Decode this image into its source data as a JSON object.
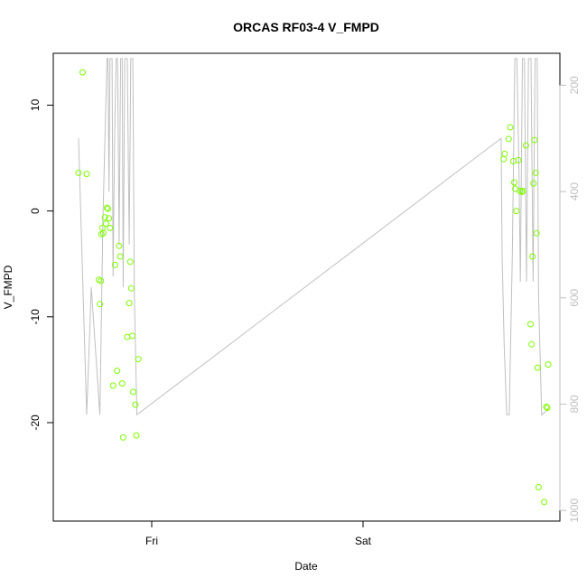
{
  "chart_data": {
    "type": "scatter",
    "title": "ORCAS RF03-4 V_FMPD",
    "xlabel": "Date",
    "ylabel": "V_FMPD",
    "x_tick_labels": [
      "Fri",
      "Sat"
    ],
    "y_ticks": [
      -20,
      -10,
      0,
      10
    ],
    "y_tick_labels": [
      "-20",
      "-10",
      "0",
      "10"
    ],
    "ylim": [
      -29.3,
      14.9
    ],
    "right_axis": {
      "ticks": [
        200,
        400,
        600,
        800,
        1000
      ],
      "labels": [
        "200",
        "400",
        "600",
        "800",
        "1000"
      ],
      "lim": [
        1020,
        140
      ],
      "color": "#bfbfbf"
    },
    "colors": {
      "points": "#7cfc00",
      "line": "#c0c0c0",
      "axis": "#000000"
    },
    "series": [
      {
        "type": "scatter",
        "values": [
          [
            0.05,
            3.6
          ],
          [
            0.058,
            13.1
          ],
          [
            0.066,
            3.5
          ],
          [
            0.09,
            -6.5
          ],
          [
            0.092,
            -8.8
          ],
          [
            0.094,
            -6.6
          ],
          [
            0.095,
            -2.2
          ],
          [
            0.097,
            -1.6
          ],
          [
            0.099,
            -2.1
          ],
          [
            0.102,
            -0.6
          ],
          [
            0.104,
            -1.2
          ],
          [
            0.106,
            0.3
          ],
          [
            0.108,
            0.2
          ],
          [
            0.11,
            -0.7
          ],
          [
            0.112,
            -1.6
          ],
          [
            0.118,
            -16.5
          ],
          [
            0.122,
            -5.1
          ],
          [
            0.126,
            -15.1
          ],
          [
            0.13,
            -3.3
          ],
          [
            0.132,
            -4.3
          ],
          [
            0.136,
            -16.3
          ],
          [
            0.138,
            -21.4
          ],
          [
            0.146,
            -11.9
          ],
          [
            0.15,
            -8.7
          ],
          [
            0.152,
            -4.8
          ],
          [
            0.154,
            -7.3
          ],
          [
            0.156,
            -11.8
          ],
          [
            0.158,
            -17.1
          ],
          [
            0.162,
            -18.3
          ],
          [
            0.164,
            -21.2
          ],
          [
            0.168,
            -14.0
          ],
          [
            0.889,
            4.9
          ],
          [
            0.891,
            5.4
          ],
          [
            0.899,
            6.8
          ],
          [
            0.902,
            7.9
          ],
          [
            0.908,
            4.7
          ],
          [
            0.91,
            2.7
          ],
          [
            0.912,
            2.1
          ],
          [
            0.914,
            0.0
          ],
          [
            0.918,
            4.8
          ],
          [
            0.921,
            1.9
          ],
          [
            0.925,
            1.8
          ],
          [
            0.927,
            1.9
          ],
          [
            0.933,
            6.2
          ],
          [
            0.942,
            -10.7
          ],
          [
            0.944,
            -12.6
          ],
          [
            0.946,
            -4.3
          ],
          [
            0.948,
            2.6
          ],
          [
            0.95,
            6.7
          ],
          [
            0.952,
            3.6
          ],
          [
            0.954,
            -2.1
          ],
          [
            0.956,
            -14.8
          ],
          [
            0.958,
            -26.1
          ],
          [
            0.969,
            -27.5
          ],
          [
            0.973,
            -18.5
          ],
          [
            0.975,
            -18.6
          ],
          [
            0.977,
            -14.5
          ]
        ]
      },
      {
        "type": "line",
        "axis": "right",
        "values": [
          [
            0.05,
            300
          ],
          [
            0.066,
            820
          ],
          [
            0.075,
            580
          ],
          [
            0.092,
            820
          ],
          [
            0.098,
            450
          ],
          [
            0.102,
            300
          ],
          [
            0.106,
            150
          ],
          [
            0.108,
            150
          ],
          [
            0.11,
            400
          ],
          [
            0.112,
            150
          ],
          [
            0.116,
            150
          ],
          [
            0.118,
            560
          ],
          [
            0.121,
            300
          ],
          [
            0.124,
            150
          ],
          [
            0.127,
            150
          ],
          [
            0.13,
            500
          ],
          [
            0.133,
            150
          ],
          [
            0.136,
            150
          ],
          [
            0.138,
            580
          ],
          [
            0.141,
            150
          ],
          [
            0.146,
            150
          ],
          [
            0.15,
            500
          ],
          [
            0.153,
            150
          ],
          [
            0.157,
            150
          ],
          [
            0.16,
            600
          ],
          [
            0.165,
            820
          ],
          [
            0.884,
            300
          ],
          [
            0.886,
            520
          ],
          [
            0.89,
            690
          ],
          [
            0.895,
            820
          ],
          [
            0.9,
            820
          ],
          [
            0.906,
            520
          ],
          [
            0.911,
            150
          ],
          [
            0.915,
            150
          ],
          [
            0.919,
            350
          ],
          [
            0.922,
            570
          ],
          [
            0.926,
            150
          ],
          [
            0.93,
            150
          ],
          [
            0.934,
            570
          ],
          [
            0.938,
            150
          ],
          [
            0.943,
            150
          ],
          [
            0.947,
            570
          ],
          [
            0.951,
            150
          ],
          [
            0.955,
            150
          ],
          [
            0.958,
            600
          ],
          [
            0.964,
            820
          ],
          [
            0.977,
            810
          ]
        ]
      }
    ]
  }
}
